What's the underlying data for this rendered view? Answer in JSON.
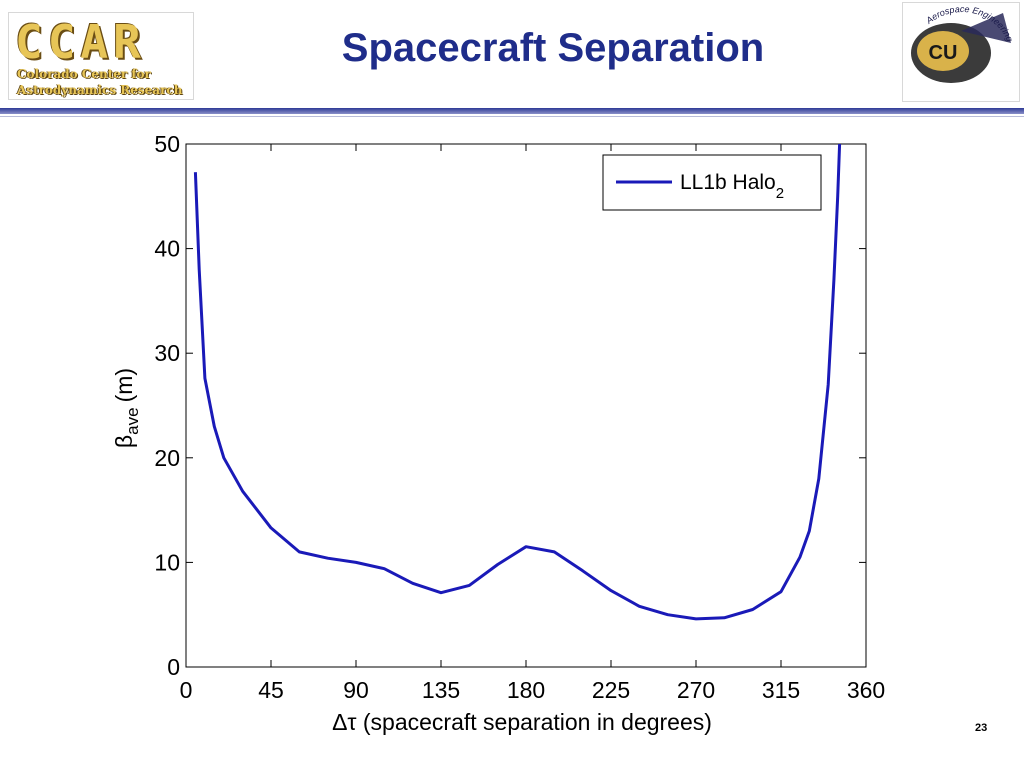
{
  "header": {
    "logo_left_big": "CCAR",
    "logo_left_line1": "Colorado Center for",
    "logo_left_line2": "Astrodynamics Research",
    "title": "Spacecraft Separation",
    "logo_right_text": "Aerospace Engineering",
    "logo_right_mark": "CU"
  },
  "colors": {
    "title": "#1f2d8a",
    "series": "#1a1ab8",
    "rule": "#2e3a96"
  },
  "chart_data": {
    "type": "line",
    "xlabel": "Δτ (spacecraft separation in degrees)",
    "ylabel": "β",
    "ylabel_sub": "ave",
    "ylabel_unit": "(m)",
    "xlim": [
      0,
      360
    ],
    "ylim": [
      0,
      50
    ],
    "xticks": [
      "0",
      "45",
      "90",
      "135",
      "180",
      "225",
      "270",
      "315",
      "360"
    ],
    "yticks": [
      "0",
      "10",
      "20",
      "30",
      "40",
      "50"
    ],
    "grid": false,
    "legend_position": "top-right",
    "series": [
      {
        "name": "LL1b Halo",
        "name_sub": "2",
        "x": [
          5,
          7,
          10,
          15,
          20,
          30,
          45,
          60,
          75,
          90,
          105,
          120,
          135,
          150,
          165,
          180,
          195,
          210,
          225,
          240,
          255,
          270,
          285,
          300,
          315,
          325,
          330,
          335,
          340,
          343,
          345,
          346
        ],
        "y": [
          47.3,
          38,
          27.6,
          23,
          20,
          16.8,
          13.3,
          11,
          10.4,
          10,
          9.4,
          8,
          7.1,
          7.8,
          9.8,
          11.5,
          11,
          9.2,
          7.3,
          5.8,
          5,
          4.6,
          4.7,
          5.5,
          7.2,
          10.5,
          13,
          18,
          27,
          37,
          45,
          50
        ]
      }
    ]
  },
  "page_number": "23"
}
